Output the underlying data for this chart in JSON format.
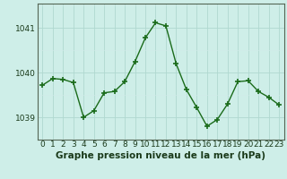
{
  "x": [
    0,
    1,
    2,
    3,
    4,
    5,
    6,
    7,
    8,
    9,
    10,
    11,
    12,
    13,
    14,
    15,
    16,
    17,
    18,
    19,
    20,
    21,
    22,
    23
  ],
  "y": [
    1039.72,
    1039.87,
    1039.85,
    1039.78,
    1039.0,
    1039.15,
    1039.55,
    1039.58,
    1039.8,
    1040.25,
    1040.78,
    1041.12,
    1041.05,
    1040.2,
    1039.62,
    1039.22,
    1038.8,
    1038.95,
    1039.3,
    1039.8,
    1039.82,
    1039.58,
    1039.45,
    1039.28
  ],
  "line_color": "#1a6b1a",
  "marker_color": "#1a6b1a",
  "bg_color": "#ceeee8",
  "grid_major_color": "#b0d8d0",
  "grid_minor_color": "#d0ece8",
  "title": "Graphe pression niveau de la mer (hPa)",
  "title_color": "#1a3a1a",
  "ylim_min": 1038.5,
  "ylim_max": 1041.55,
  "xlim_min": -0.5,
  "xlim_max": 23.5,
  "yticks": [
    1039,
    1040,
    1041
  ],
  "xticks": [
    0,
    1,
    2,
    3,
    4,
    5,
    6,
    7,
    8,
    9,
    10,
    11,
    12,
    13,
    14,
    15,
    16,
    17,
    18,
    19,
    20,
    21,
    22,
    23
  ],
  "tick_fontsize": 6.5,
  "title_fontsize": 7.5,
  "line_width": 1.0,
  "marker_size": 4
}
